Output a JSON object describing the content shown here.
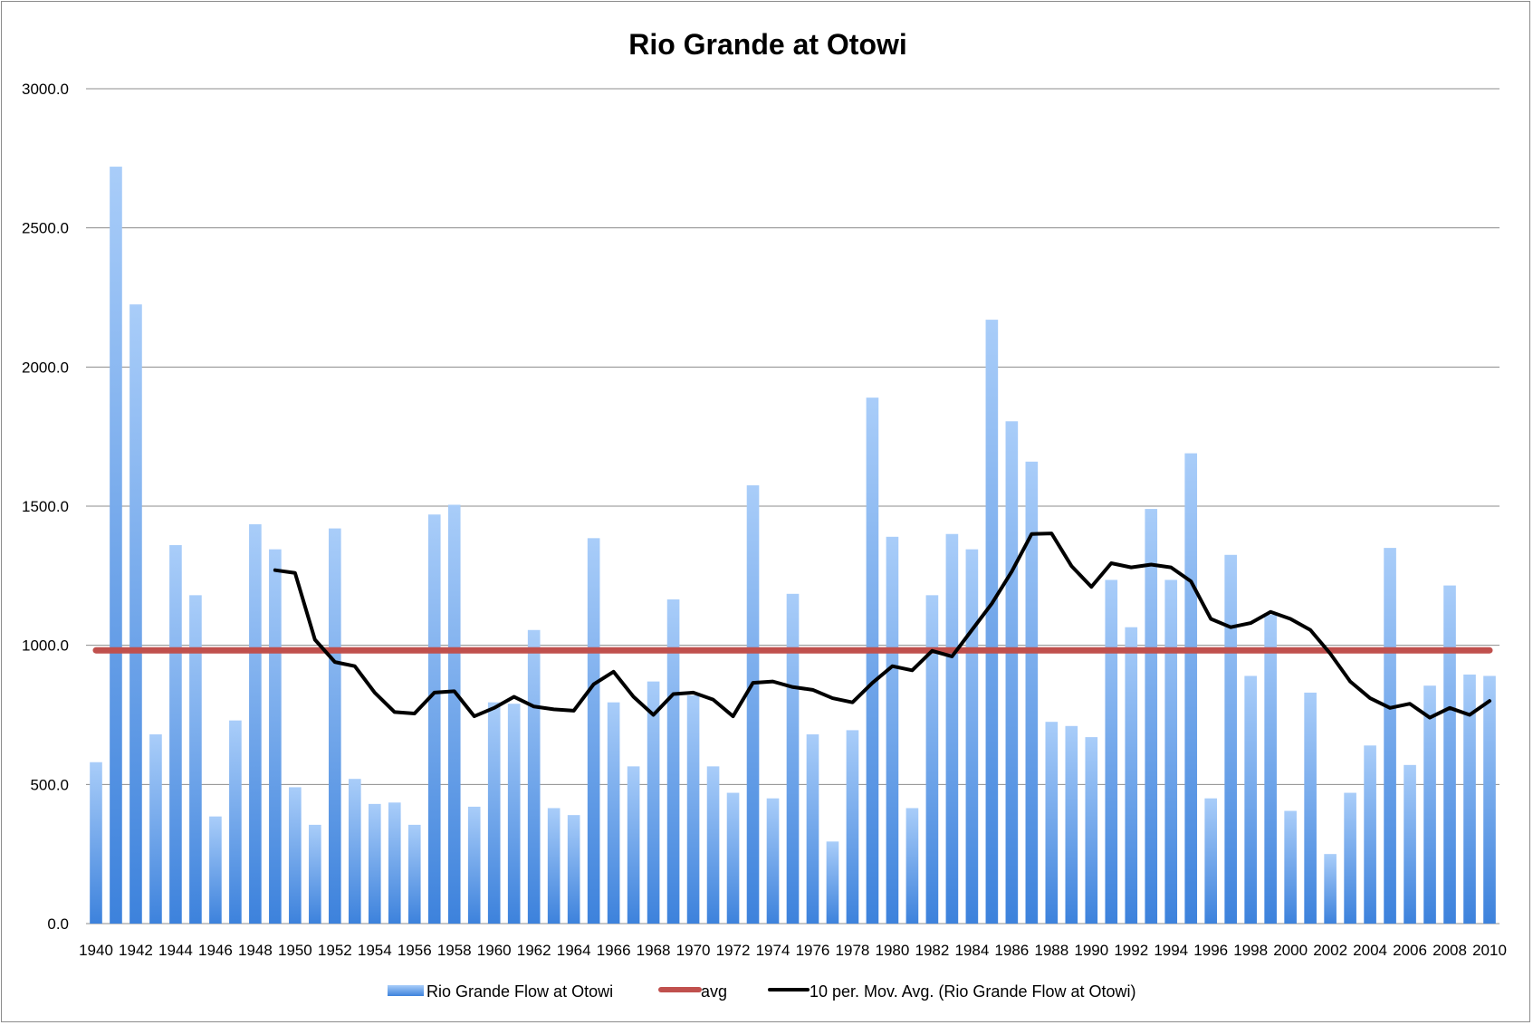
{
  "chart_data": {
    "type": "bar",
    "title": "Rio Grande at Otowi",
    "xlabel": "",
    "ylabel": "",
    "ylim": [
      0,
      3000
    ],
    "y_ticks": [
      "0.0",
      "500.0",
      "1000.0",
      "1500.0",
      "2000.0",
      "2500.0",
      "3000.0"
    ],
    "y_tick_values": [
      0,
      500,
      1000,
      1500,
      2000,
      2500,
      3000
    ],
    "grid": true,
    "legend_position": "bottom",
    "x": [
      1940,
      1941,
      1942,
      1943,
      1944,
      1945,
      1946,
      1947,
      1948,
      1949,
      1950,
      1951,
      1952,
      1953,
      1954,
      1955,
      1956,
      1957,
      1958,
      1959,
      1960,
      1961,
      1962,
      1963,
      1964,
      1965,
      1966,
      1967,
      1968,
      1969,
      1970,
      1971,
      1972,
      1973,
      1974,
      1975,
      1976,
      1977,
      1978,
      1979,
      1980,
      1981,
      1982,
      1983,
      1984,
      1985,
      1986,
      1987,
      1988,
      1989,
      1990,
      1991,
      1992,
      1993,
      1994,
      1995,
      1996,
      1997,
      1998,
      1999,
      2000,
      2001,
      2002,
      2003,
      2004,
      2005,
      2006,
      2007,
      2008,
      2009,
      2010
    ],
    "x_tick_labels": [
      "1940",
      "1942",
      "1944",
      "1946",
      "1948",
      "1950",
      "1952",
      "1954",
      "1956",
      "1958",
      "1960",
      "1962",
      "1964",
      "1966",
      "1968",
      "1970",
      "1972",
      "1974",
      "1976",
      "1978",
      "1980",
      "1982",
      "1984",
      "1986",
      "1988",
      "1990",
      "1992",
      "1994",
      "1996",
      "1998",
      "2000",
      "2002",
      "2004",
      "2006",
      "2008",
      "2010"
    ],
    "series": [
      {
        "name": "Rio Grande Flow at Otowi",
        "kind": "bar",
        "color": "#4a8ee0",
        "values": [
          580,
          2720,
          2225,
          680,
          1360,
          1180,
          385,
          730,
          1435,
          1345,
          490,
          355,
          1420,
          520,
          430,
          435,
          355,
          1470,
          1505,
          420,
          795,
          790,
          1055,
          415,
          390,
          1385,
          795,
          565,
          870,
          1165,
          820,
          565,
          470,
          1575,
          450,
          1185,
          680,
          295,
          695,
          1890,
          1390,
          415,
          1180,
          1400,
          1345,
          2170,
          1805,
          1660,
          725,
          710,
          670,
          1235,
          1065,
          1490,
          1235,
          1690,
          450,
          1325,
          890,
          1110,
          405,
          830,
          250,
          470,
          640,
          1350,
          570,
          855,
          1215,
          895,
          890
        ]
      },
      {
        "name": "avg",
        "kind": "line",
        "color": "#c0504d",
        "values": [
          982,
          982,
          982,
          982,
          982,
          982,
          982,
          982,
          982,
          982,
          982,
          982,
          982,
          982,
          982,
          982,
          982,
          982,
          982,
          982,
          982,
          982,
          982,
          982,
          982,
          982,
          982,
          982,
          982,
          982,
          982,
          982,
          982,
          982,
          982,
          982,
          982,
          982,
          982,
          982,
          982,
          982,
          982,
          982,
          982,
          982,
          982,
          982,
          982,
          982,
          982,
          982,
          982,
          982,
          982,
          982,
          982,
          982,
          982,
          982,
          982,
          982,
          982,
          982,
          982,
          982,
          982,
          982,
          982,
          982,
          982
        ]
      },
      {
        "name": "10 per. Mov. Avg. (Rio Grande Flow at Otowi)",
        "kind": "line",
        "color": "#000000",
        "values": [
          null,
          null,
          null,
          null,
          null,
          null,
          null,
          null,
          null,
          1270,
          1260,
          1020,
          940,
          925,
          830,
          760,
          755,
          830,
          835,
          745,
          775,
          815,
          780,
          770,
          765,
          860,
          905,
          815,
          750,
          825,
          830,
          805,
          745,
          865,
          870,
          850,
          840,
          810,
          795,
          865,
          925,
          910,
          980,
          960,
          1055,
          1150,
          1265,
          1400,
          1402,
          1285,
          1210,
          1295,
          1280,
          1290,
          1280,
          1230,
          1095,
          1065,
          1080,
          1120,
          1095,
          1055,
          970,
          870,
          810,
          775,
          790,
          740,
          775,
          750,
          800
        ]
      }
    ]
  }
}
